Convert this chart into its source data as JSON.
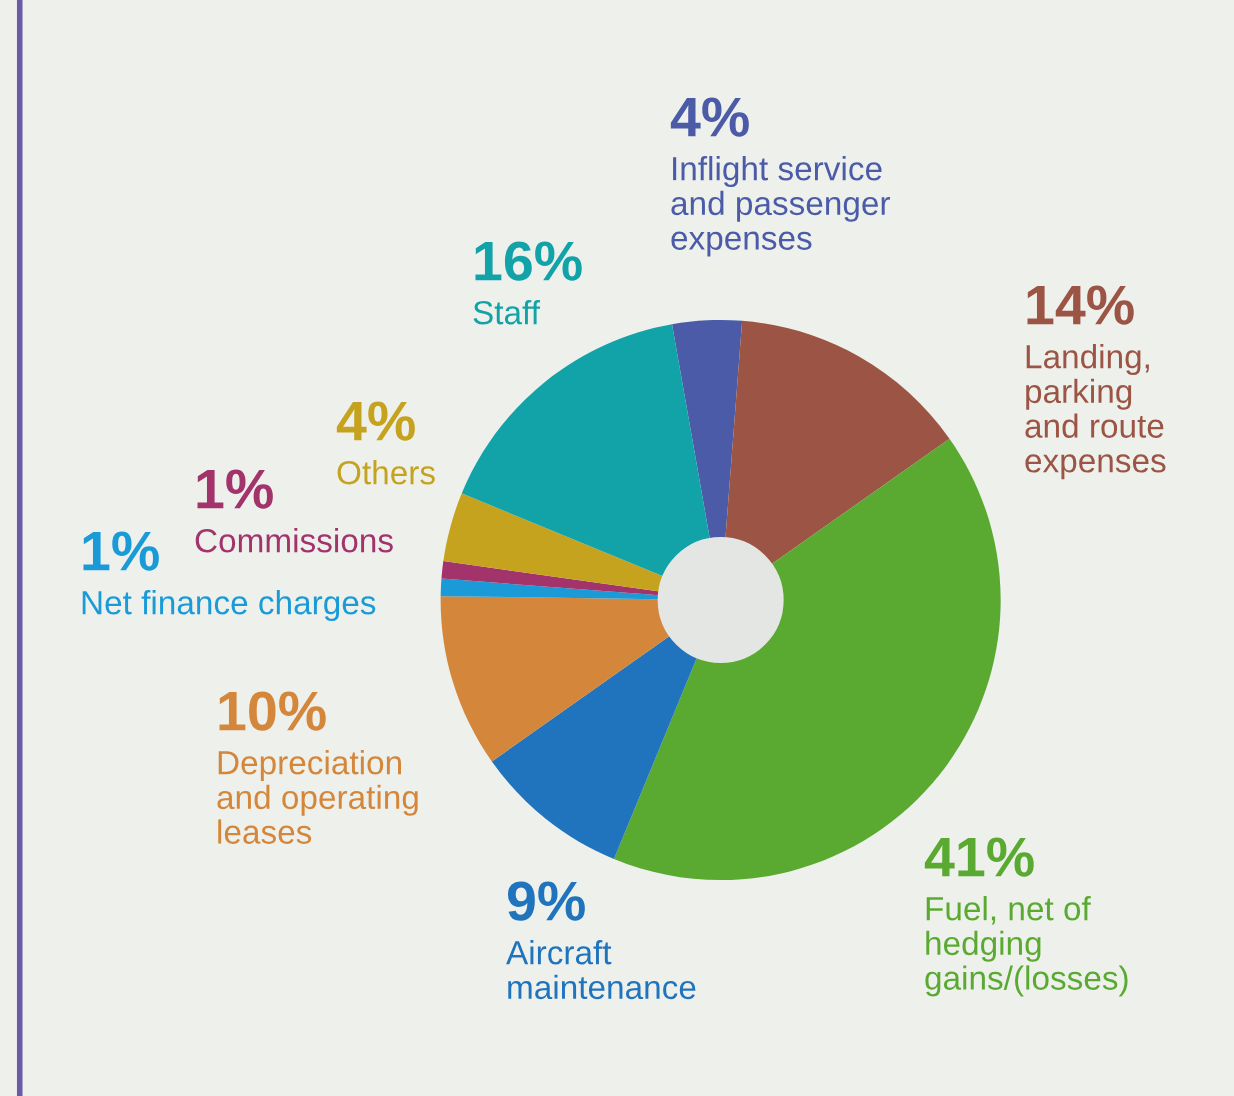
{
  "chart_data": {
    "type": "donut",
    "categories": [
      "Inflight service\nand passenger\nexpenses",
      "Landing,\nparking\nand route\nexpenses",
      "Fuel, net of\nhedging\ngains/(losses)",
      "Aircraft\nmaintenance",
      "Depreciation\nand operating\nleases",
      "Net finance charges",
      "Commissions",
      "Others",
      "Staff"
    ],
    "values": [
      4,
      14,
      41,
      9,
      10,
      1,
      1,
      4,
      16
    ],
    "value_labels": [
      "4%",
      "14%",
      "41%",
      "9%",
      "10%",
      "1%",
      "1%",
      "4%",
      "16%"
    ],
    "colors": [
      "#4b5ba8",
      "#9c5545",
      "#5aaa32",
      "#1f74bd",
      "#d4863a",
      "#1a9bd8",
      "#a2346b",
      "#c5a31f",
      "#12a3a8"
    ]
  }
}
